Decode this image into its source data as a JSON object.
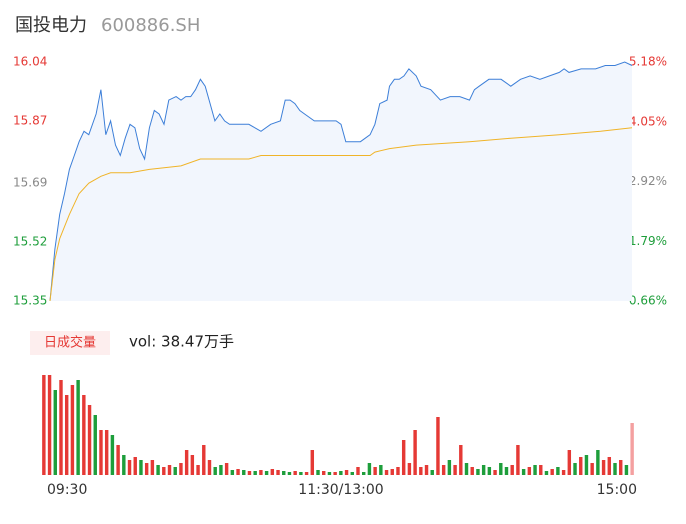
{
  "chart_data": [
    {
      "type": "line",
      "title": "国投电力",
      "subtitle": "600886.SH",
      "xlim": [
        0,
        240
      ],
      "xticks": [
        {
          "value": 0,
          "label": "09:30"
        },
        {
          "value": 120,
          "label": "11:30/13:00"
        },
        {
          "value": 240,
          "label": "15:00"
        }
      ],
      "ylim": [
        15.35,
        16.04
      ],
      "yticks": [
        16.04,
        15.87,
        15.69,
        15.52,
        15.35
      ],
      "ytick_colors": [
        "#e53935",
        "#e53935",
        "#888888",
        "#1e9e3b",
        "#1e9e3b"
      ],
      "y2lim": [
        0.66,
        5.18
      ],
      "y2ticks": [
        {
          "value": 5.18,
          "label": "5.18%"
        },
        {
          "value": 4.05,
          "label": "4.05%"
        },
        {
          "value": 2.92,
          "label": "2.92%"
        },
        {
          "value": 1.79,
          "label": "1.79%"
        },
        {
          "value": 0.66,
          "label": "0.66%"
        }
      ],
      "series": [
        {
          "color": "#3d7fd8",
          "fill": "#f2f6fd",
          "x": [
            0,
            2,
            4,
            6,
            8,
            10,
            12,
            14,
            16,
            19,
            21,
            23,
            25,
            27,
            29,
            31,
            33,
            35,
            37,
            39,
            41,
            43,
            45,
            47,
            49,
            52,
            54,
            56,
            58,
            60,
            62,
            64,
            66,
            68,
            70,
            72,
            74,
            78,
            82,
            87,
            91,
            95,
            97,
            99,
            101,
            103,
            105,
            109,
            113,
            118,
            120,
            122,
            124,
            128,
            132,
            134,
            136,
            139,
            140,
            142,
            144,
            146,
            148,
            151,
            153,
            157,
            161,
            165,
            169,
            173,
            175,
            177,
            181,
            186,
            190,
            194,
            198,
            202,
            206,
            210,
            212,
            214,
            219,
            223,
            225,
            229,
            233,
            237,
            240
          ],
          "values": [
            15.35,
            15.5,
            15.6,
            15.66,
            15.73,
            15.77,
            15.81,
            15.84,
            15.83,
            15.89,
            15.96,
            15.83,
            15.87,
            15.8,
            15.77,
            15.82,
            15.86,
            15.85,
            15.79,
            15.76,
            15.85,
            15.9,
            15.89,
            15.86,
            15.93,
            15.94,
            15.93,
            15.94,
            15.94,
            15.96,
            15.99,
            15.97,
            15.92,
            15.87,
            15.89,
            15.87,
            15.86,
            15.86,
            15.86,
            15.84,
            15.86,
            15.87,
            15.93,
            15.93,
            15.92,
            15.9,
            15.89,
            15.87,
            15.87,
            15.87,
            15.86,
            15.81,
            15.81,
            15.81,
            15.83,
            15.86,
            15.92,
            15.93,
            15.97,
            15.99,
            15.99,
            16.0,
            16.02,
            16.0,
            15.97,
            15.96,
            15.93,
            15.94,
            15.94,
            15.93,
            15.96,
            15.97,
            15.99,
            15.99,
            15.97,
            15.99,
            16.0,
            15.99,
            16.0,
            16.01,
            16.02,
            16.01,
            16.02,
            16.02,
            16.02,
            16.03,
            16.03,
            16.04,
            16.03
          ]
        },
        {
          "color": "#f0b429",
          "x": [
            0,
            2,
            4,
            8,
            12,
            16,
            21,
            25,
            33,
            41,
            54,
            62,
            82,
            87,
            103,
            132,
            134,
            140,
            151,
            173,
            190,
            210,
            227,
            240
          ],
          "values": [
            15.35,
            15.47,
            15.53,
            15.6,
            15.66,
            15.69,
            15.71,
            15.72,
            15.72,
            15.73,
            15.74,
            15.76,
            15.76,
            15.77,
            15.77,
            15.77,
            15.78,
            15.79,
            15.8,
            15.81,
            15.82,
            15.83,
            15.84,
            15.85
          ]
        }
      ]
    },
    {
      "type": "bar",
      "title": "日成交量",
      "annotation": "vol: 38.47万手",
      "ylim": [
        0,
        100
      ],
      "values": [
        100,
        100,
        85,
        95,
        80,
        90,
        95,
        80,
        70,
        60,
        45,
        45,
        40,
        30,
        20,
        15,
        18,
        15,
        12,
        15,
        10,
        8,
        10,
        8,
        12,
        25,
        20,
        10,
        30,
        15,
        8,
        10,
        12,
        5,
        6,
        5,
        4,
        4,
        5,
        4,
        6,
        5,
        4,
        3,
        4,
        3,
        3,
        25,
        5,
        4,
        3,
        3,
        4,
        5,
        3,
        8,
        3,
        12,
        8,
        10,
        5,
        6,
        8,
        35,
        12,
        45,
        8,
        10,
        5,
        58,
        10,
        15,
        10,
        30,
        12,
        8,
        6,
        10,
        8,
        5,
        12,
        8,
        10,
        30,
        6,
        8,
        10,
        10,
        4,
        6,
        8,
        5,
        25,
        12,
        18,
        20,
        12,
        25,
        15,
        18,
        12,
        15,
        10,
        52
      ],
      "colors": [
        "#e53935",
        "#e53935",
        "#1e9e3b",
        "#e53935",
        "#e53935",
        "#e53935",
        "#1e9e3b",
        "#e53935",
        "#e53935",
        "#1e9e3b",
        "#e53935",
        "#e53935",
        "#1e9e3b",
        "#e53935",
        "#1e9e3b",
        "#e53935",
        "#e53935",
        "#1e9e3b",
        "#e53935",
        "#e53935",
        "#1e9e3b",
        "#e53935",
        "#e53935",
        "#1e9e3b",
        "#e53935",
        "#e53935",
        "#e53935",
        "#e53935",
        "#e53935",
        "#e53935",
        "#1e9e3b",
        "#1e9e3b",
        "#e53935",
        "#1e9e3b",
        "#e53935",
        "#1e9e3b",
        "#e53935",
        "#1e9e3b",
        "#e53935",
        "#1e9e3b",
        "#e53935",
        "#e53935",
        "#1e9e3b",
        "#1e9e3b",
        "#e53935",
        "#1e9e3b",
        "#e53935",
        "#e53935",
        "#1e9e3b",
        "#e53935",
        "#1e9e3b",
        "#e53935",
        "#1e9e3b",
        "#e53935",
        "#1e9e3b",
        "#e53935",
        "#1e9e3b",
        "#1e9e3b",
        "#e53935",
        "#1e9e3b",
        "#e53935",
        "#e53935",
        "#e53935",
        "#e53935",
        "#e53935",
        "#e53935",
        "#e53935",
        "#e53935",
        "#1e9e3b",
        "#e53935",
        "#e53935",
        "#1e9e3b",
        "#e53935",
        "#e53935",
        "#1e9e3b",
        "#e53935",
        "#1e9e3b",
        "#1e9e3b",
        "#1e9e3b",
        "#e53935",
        "#1e9e3b",
        "#1e9e3b",
        "#e53935",
        "#e53935",
        "#1e9e3b",
        "#e53935",
        "#1e9e3b",
        "#e53935",
        "#1e9e3b",
        "#e53935",
        "#1e9e3b",
        "#e53935",
        "#e53935",
        "#1e9e3b",
        "#e53935",
        "#1e9e3b",
        "#e53935",
        "#1e9e3b",
        "#e53935",
        "#e53935",
        "#1e9e3b",
        "#e53935",
        "#1e9e3b",
        "#f4a0a0"
      ]
    }
  ]
}
